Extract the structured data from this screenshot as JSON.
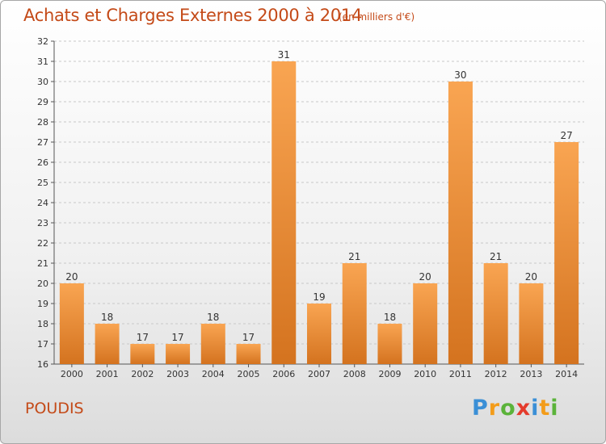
{
  "header": {
    "title": "Achats et Charges Externes 2000 à 2014",
    "unit": "(en milliers d'€)"
  },
  "footer": {
    "place": "POUDIS",
    "brand": "Proxiti"
  },
  "colors": {
    "accent": "#c44a18",
    "bar_top": "#f9a552",
    "bar_bottom": "#d4731f"
  },
  "chart_data": {
    "type": "bar",
    "title": "Achats et Charges Externes 2000 à 2014",
    "xlabel": "",
    "ylabel": "",
    "categories": [
      "2000",
      "2001",
      "2002",
      "2003",
      "2004",
      "2005",
      "2006",
      "2007",
      "2008",
      "2009",
      "2010",
      "2011",
      "2012",
      "2013",
      "2014"
    ],
    "values": [
      20,
      18,
      17,
      17,
      18,
      17,
      31,
      19,
      21,
      18,
      20,
      30,
      21,
      20,
      27
    ],
    "ylim": [
      16,
      32
    ],
    "yticks": [
      16,
      17,
      18,
      19,
      20,
      21,
      22,
      23,
      24,
      25,
      26,
      27,
      28,
      29,
      30,
      31,
      32
    ],
    "grid": "horizontal-dashed",
    "legend": "none"
  }
}
